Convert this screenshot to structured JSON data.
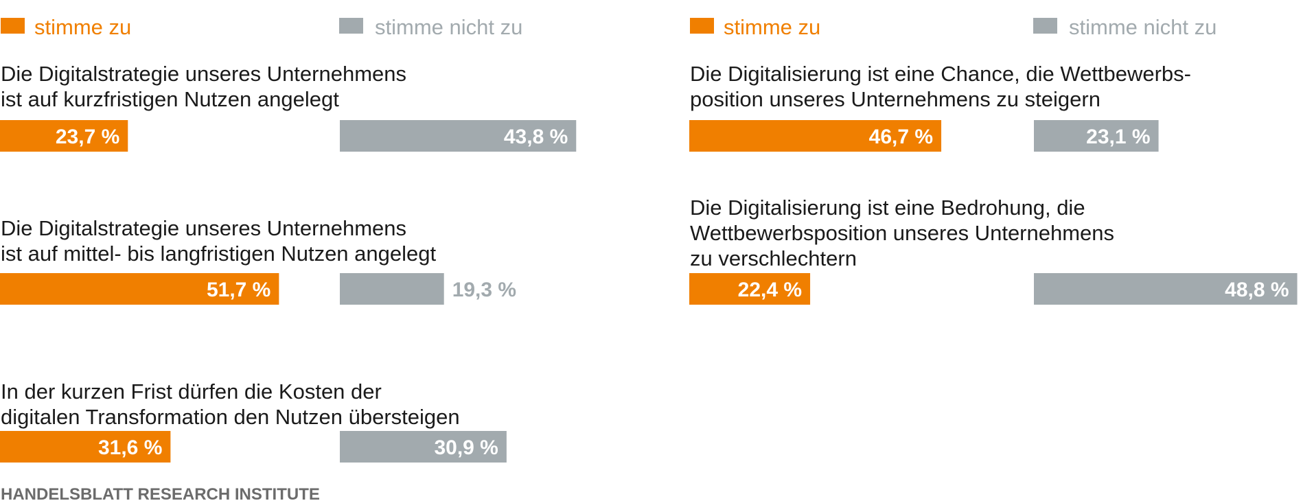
{
  "chart_data": {
    "type": "bar",
    "colors": {
      "agree": "#f07f00",
      "disagree": "#a2aaae",
      "outside_label": "#a2aaae",
      "inside_label": "#ffffff"
    },
    "legend": {
      "agree": "stimme zu",
      "disagree": "stimme nicht zu"
    },
    "source": "HANDELSBLATT RESEARCH INSTITUTE",
    "items": [
      {
        "text": [
          "Die Digitalstrategie unseres Unternehmens",
          "ist auf kurzfristigen Nutzen angelegt"
        ],
        "agree": 23.7,
        "disagree": 43.8,
        "agree_label": "23,7 %",
        "disagree_label": "43,8 %"
      },
      {
        "text": [
          "Die Digitalstrategie unseres Unternehmens",
          "ist auf mittel- bis langfristigen Nutzen angelegt"
        ],
        "agree": 51.7,
        "disagree": 19.3,
        "agree_label": "51,7 %",
        "disagree_label": "19,3 %"
      },
      {
        "text": [
          "In der kurzen Frist dürfen die Kosten der",
          "digitalen Transformation den Nutzen übersteigen"
        ],
        "agree": 31.6,
        "disagree": 30.9,
        "agree_label": "31,6 %",
        "disagree_label": "30,9 %"
      },
      {
        "text": [
          "Die Digitalisierung ist eine Chance, die Wettbewerbs-",
          "position unseres Unternehmens zu steigern"
        ],
        "agree": 46.7,
        "disagree": 23.1,
        "agree_label": "46,7 %",
        "disagree_label": "23,1 %"
      },
      {
        "text": [
          "Die Digitalisierung ist eine Bedrohung, die",
          "Wettbewerbsposition unseres Unternehmens",
          "zu verschlechtern"
        ],
        "agree": 22.4,
        "disagree": 48.8,
        "agree_label": "22,4 %",
        "disagree_label": "48,8 %"
      }
    ]
  }
}
